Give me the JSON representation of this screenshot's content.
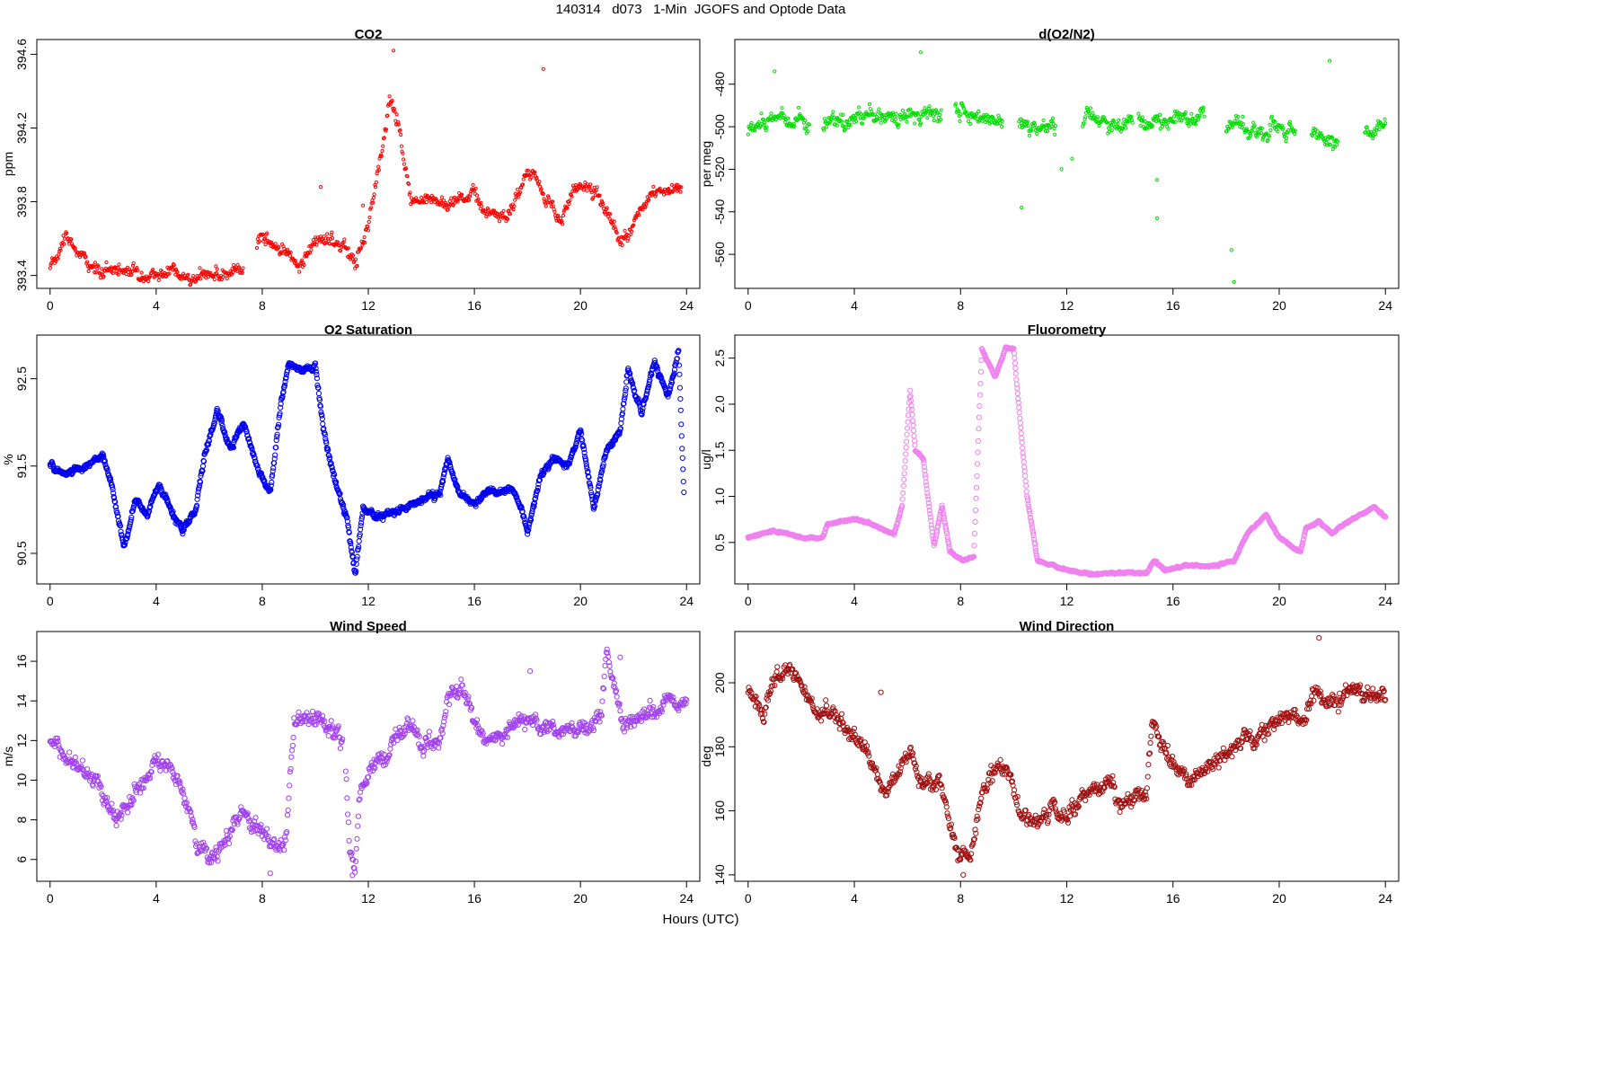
{
  "title": "140314   d073   1-Min  JGOFS and Optode Data",
  "x_common_label": "Hours (UTC)",
  "chart_data": [
    {
      "type": "scatter",
      "title": "CO2",
      "ylabel": "ppm",
      "color": "#ff0000",
      "xlim": [
        -0.5,
        24.5
      ],
      "ylim": [
        393.33,
        394.68
      ],
      "xticks": [
        0,
        4,
        8,
        12,
        16,
        20,
        24
      ],
      "xtick_labels": [
        "0",
        "4",
        "8",
        "12",
        "16",
        "20",
        "24"
      ],
      "yticks": [
        393.4,
        393.8,
        394.2,
        394.6
      ],
      "ytick_labels": [
        "393.4",
        "393.8",
        "394.2",
        "394.6"
      ],
      "gaps": [
        [
          7.3,
          7.8
        ]
      ],
      "trend": [
        [
          0,
          393.45
        ],
        [
          0.6,
          393.6
        ],
        [
          1.3,
          393.5
        ],
        [
          1.7,
          393.42
        ],
        [
          2.3,
          393.42
        ],
        [
          2.8,
          393.44
        ],
        [
          3.5,
          393.42
        ],
        [
          4.5,
          393.41
        ],
        [
          5.3,
          393.38
        ],
        [
          6,
          393.42
        ],
        [
          7.2,
          393.43
        ],
        [
          8,
          393.62
        ],
        [
          8.8,
          393.52
        ],
        [
          9.3,
          393.45
        ],
        [
          10,
          393.6
        ],
        [
          11,
          393.55
        ],
        [
          11.5,
          393.45
        ],
        [
          12,
          393.65
        ],
        [
          12.8,
          394.35
        ],
        [
          13.2,
          394.2
        ],
        [
          13.6,
          393.82
        ],
        [
          14.2,
          393.82
        ],
        [
          15,
          393.78
        ],
        [
          15.5,
          393.82
        ],
        [
          16,
          393.85
        ],
        [
          16.5,
          393.75
        ],
        [
          17.2,
          393.72
        ],
        [
          18,
          393.95
        ],
        [
          18.5,
          393.88
        ],
        [
          19.2,
          393.72
        ],
        [
          20,
          393.9
        ],
        [
          20.6,
          393.85
        ],
        [
          21.5,
          393.55
        ],
        [
          22,
          393.7
        ],
        [
          23,
          393.9
        ],
        [
          23.8,
          393.85
        ]
      ],
      "noise": 0.045,
      "outliers": [
        [
          12.95,
          394.62
        ],
        [
          18.6,
          394.52
        ],
        [
          10.2,
          393.88
        ],
        [
          11.8,
          393.78
        ]
      ]
    },
    {
      "type": "scatter",
      "title": "d(O2/N2)",
      "ylabel": "per meg",
      "color": "#00dd00",
      "xlim": [
        -0.5,
        24.5
      ],
      "ylim": [
        -576,
        -459
      ],
      "xticks": [
        0,
        4,
        8,
        12,
        16,
        20,
        24
      ],
      "xtick_labels": [
        "0",
        "4",
        "8",
        "12",
        "16",
        "20",
        "24"
      ],
      "yticks": [
        -560,
        -540,
        -520,
        -500,
        -480
      ],
      "ytick_labels": [
        "-560",
        "-540",
        "-520",
        "-500",
        "-480"
      ],
      "gaps": [
        [
          2.3,
          2.8
        ],
        [
          7.3,
          7.8
        ],
        [
          9.6,
          10.2
        ],
        [
          11.6,
          12.6
        ],
        [
          14.5,
          14.7
        ],
        [
          17.2,
          18.0
        ],
        [
          20.6,
          21.2
        ],
        [
          22.2,
          23.2
        ]
      ],
      "trend": [
        [
          0,
          -502
        ],
        [
          1,
          -497
        ],
        [
          2,
          -496
        ],
        [
          2.8,
          -499
        ],
        [
          4,
          -497
        ],
        [
          5,
          -496
        ],
        [
          6,
          -494
        ],
        [
          7,
          -495
        ],
        [
          8,
          -493
        ],
        [
          9,
          -496
        ],
        [
          10,
          -497
        ],
        [
          11,
          -498
        ],
        [
          12,
          -497
        ],
        [
          13,
          -495
        ],
        [
          14,
          -497
        ],
        [
          15,
          -498
        ],
        [
          16,
          -496
        ],
        [
          17,
          -492
        ],
        [
          18,
          -500
        ],
        [
          19,
          -502
        ],
        [
          20,
          -503
        ],
        [
          21,
          -503
        ],
        [
          22,
          -508
        ],
        [
          23.2,
          -503
        ],
        [
          24,
          -502
        ]
      ],
      "noise": 4.5,
      "outliers": [
        [
          1.0,
          -474
        ],
        [
          6.5,
          -465
        ],
        [
          10.3,
          -538
        ],
        [
          15.4,
          -525
        ],
        [
          15.4,
          -543
        ],
        [
          21.9,
          -469
        ],
        [
          18.2,
          -558
        ],
        [
          18.3,
          -573
        ],
        [
          11.8,
          -520
        ],
        [
          12.2,
          -515
        ]
      ]
    },
    {
      "type": "scatter",
      "title": "O2 Saturation",
      "ylabel": "%",
      "color": "#0000ee",
      "xlim": [
        -0.5,
        24.5
      ],
      "ylim": [
        90.15,
        93.0
      ],
      "xticks": [
        0,
        4,
        8,
        12,
        16,
        20,
        24
      ],
      "xtick_labels": [
        "0",
        "4",
        "8",
        "12",
        "16",
        "20",
        "24"
      ],
      "yticks": [
        90.5,
        91.5,
        92.5
      ],
      "ytick_labels": [
        "90.5",
        "91.5",
        "92.5"
      ],
      "gaps": [],
      "trend": [
        [
          0,
          91.5
        ],
        [
          0.5,
          91.4
        ],
        [
          1,
          91.45
        ],
        [
          1.6,
          91.55
        ],
        [
          2.0,
          91.6
        ],
        [
          2.3,
          91.3
        ],
        [
          2.8,
          90.55
        ],
        [
          3.2,
          91.1
        ],
        [
          3.7,
          90.95
        ],
        [
          4.1,
          91.3
        ],
        [
          4.6,
          90.95
        ],
        [
          5.0,
          90.75
        ],
        [
          5.5,
          91.0
        ],
        [
          5.8,
          91.6
        ],
        [
          6.3,
          92.1
        ],
        [
          6.8,
          91.7
        ],
        [
          7.3,
          92.0
        ],
        [
          7.8,
          91.5
        ],
        [
          8.3,
          91.2
        ],
        [
          8.7,
          92.2
        ],
        [
          9.0,
          92.7
        ],
        [
          9.5,
          92.6
        ],
        [
          10.0,
          92.65
        ],
        [
          10.3,
          91.9
        ],
        [
          10.7,
          91.4
        ],
        [
          11.2,
          90.9
        ],
        [
          11.5,
          90.25
        ],
        [
          11.8,
          91.0
        ],
        [
          12.3,
          90.9
        ],
        [
          13.0,
          90.95
        ],
        [
          14.0,
          91.1
        ],
        [
          14.7,
          91.2
        ],
        [
          15.0,
          91.6
        ],
        [
          15.4,
          91.2
        ],
        [
          16.0,
          91.05
        ],
        [
          16.5,
          91.2
        ],
        [
          17.5,
          91.2
        ],
        [
          18.0,
          90.75
        ],
        [
          18.5,
          91.4
        ],
        [
          19.0,
          91.6
        ],
        [
          19.5,
          91.5
        ],
        [
          20.0,
          91.9
        ],
        [
          20.5,
          91.0
        ],
        [
          21.0,
          91.7
        ],
        [
          21.5,
          91.9
        ],
        [
          21.8,
          92.6
        ],
        [
          22.3,
          92.1
        ],
        [
          22.8,
          92.7
        ],
        [
          23.3,
          92.3
        ],
        [
          23.7,
          92.8
        ],
        [
          23.9,
          91.2
        ]
      ],
      "noise": 0.045,
      "dense": true,
      "outliers": []
    },
    {
      "type": "scatter",
      "title": "Fluorometry",
      "ylabel": "ug/l",
      "color": "#ee82ee",
      "xlim": [
        -0.5,
        24.5
      ],
      "ylim": [
        0.05,
        2.75
      ],
      "xticks": [
        0,
        4,
        8,
        12,
        16,
        20,
        24
      ],
      "xtick_labels": [
        "0",
        "4",
        "8",
        "12",
        "16",
        "20",
        "24"
      ],
      "yticks": [
        0.5,
        1.0,
        1.5,
        2.0,
        2.5
      ],
      "ytick_labels": [
        "0.5",
        "1.0",
        "1.5",
        "2.0",
        "2.5"
      ],
      "gaps": [],
      "trend": [
        [
          0,
          0.55
        ],
        [
          1,
          0.63
        ],
        [
          2,
          0.55
        ],
        [
          2.8,
          0.55
        ],
        [
          3.0,
          0.7
        ],
        [
          4.0,
          0.75
        ],
        [
          4.5,
          0.72
        ],
        [
          5.0,
          0.65
        ],
        [
          5.5,
          0.58
        ],
        [
          5.8,
          0.9
        ],
        [
          6.1,
          2.15
        ],
        [
          6.3,
          1.5
        ],
        [
          6.6,
          1.4
        ],
        [
          7.0,
          0.45
        ],
        [
          7.3,
          0.9
        ],
        [
          7.6,
          0.4
        ],
        [
          8.1,
          0.3
        ],
        [
          8.5,
          0.35
        ],
        [
          8.8,
          2.6
        ],
        [
          9.3,
          2.3
        ],
        [
          9.7,
          2.6
        ],
        [
          10.0,
          2.6
        ],
        [
          10.5,
          1.0
        ],
        [
          10.9,
          0.3
        ],
        [
          12.0,
          0.2
        ],
        [
          13.0,
          0.15
        ],
        [
          14.0,
          0.17
        ],
        [
          15.0,
          0.17
        ],
        [
          15.3,
          0.3
        ],
        [
          15.7,
          0.2
        ],
        [
          16.5,
          0.25
        ],
        [
          17.5,
          0.24
        ],
        [
          18.3,
          0.3
        ],
        [
          18.8,
          0.6
        ],
        [
          19.5,
          0.8
        ],
        [
          20.0,
          0.55
        ],
        [
          20.8,
          0.4
        ],
        [
          21.0,
          0.65
        ],
        [
          21.5,
          0.72
        ],
        [
          22.0,
          0.6
        ],
        [
          23.0,
          0.8
        ],
        [
          23.6,
          0.88
        ],
        [
          24.0,
          0.78
        ]
      ],
      "noise": 0.012,
      "dense": true,
      "outliers": []
    },
    {
      "type": "scatter",
      "title": "Wind Speed",
      "ylabel": "m/s",
      "color": "#a040ee",
      "xlim": [
        -0.5,
        24.5
      ],
      "ylim": [
        4.9,
        17.5
      ],
      "xticks": [
        0,
        4,
        8,
        12,
        16,
        20,
        24
      ],
      "xtick_labels": [
        "0",
        "4",
        "8",
        "12",
        "16",
        "20",
        "24"
      ],
      "yticks": [
        6,
        8,
        10,
        12,
        14,
        16
      ],
      "ytick_labels": [
        "6",
        "8",
        "10",
        "12",
        "14",
        "16"
      ],
      "gaps": [
        [
          11.05,
          11.15
        ]
      ],
      "trend": [
        [
          0,
          11.9
        ],
        [
          0.6,
          11.0
        ],
        [
          1.2,
          10.8
        ],
        [
          1.8,
          10.3
        ],
        [
          2.5,
          8.0
        ],
        [
          3.3,
          9.5
        ],
        [
          4.0,
          11.2
        ],
        [
          4.6,
          10.2
        ],
        [
          5.2,
          8.5
        ],
        [
          5.6,
          6.5
        ],
        [
          6.2,
          6.2
        ],
        [
          6.6,
          7.0
        ],
        [
          7.2,
          8.4
        ],
        [
          7.7,
          7.5
        ],
        [
          8.3,
          6.8
        ],
        [
          8.9,
          7.0
        ],
        [
          9.2,
          12.8
        ],
        [
          10.0,
          13.0
        ],
        [
          10.6,
          12.5
        ],
        [
          11.1,
          12.0
        ],
        [
          11.3,
          6.5
        ],
        [
          11.5,
          5.5
        ],
        [
          11.7,
          9.8
        ],
        [
          12.3,
          10.8
        ],
        [
          13.0,
          12.0
        ],
        [
          13.6,
          13.0
        ],
        [
          14.0,
          11.8
        ],
        [
          14.6,
          11.6
        ],
        [
          15.0,
          14.0
        ],
        [
          15.5,
          14.8
        ],
        [
          16.0,
          13.0
        ],
        [
          16.5,
          12.0
        ],
        [
          17.2,
          12.5
        ],
        [
          17.8,
          13.5
        ],
        [
          18.5,
          12.8
        ],
        [
          19.5,
          12.5
        ],
        [
          20.3,
          12.5
        ],
        [
          20.8,
          13.5
        ],
        [
          21.0,
          16.5
        ],
        [
          21.6,
          12.5
        ],
        [
          22.0,
          13.0
        ],
        [
          22.8,
          13.5
        ],
        [
          23.5,
          14.2
        ],
        [
          24.0,
          14.0
        ]
      ],
      "noise": 0.5,
      "outliers": [
        [
          11.4,
          5.2
        ],
        [
          8.3,
          5.3
        ],
        [
          18.1,
          15.5
        ],
        [
          21.5,
          16.2
        ]
      ]
    },
    {
      "type": "scatter",
      "title": "Wind Direction",
      "ylabel": "deg",
      "color": "#a01010",
      "xlim": [
        -0.5,
        24.5
      ],
      "ylim": [
        138,
        216
      ],
      "xticks": [
        0,
        4,
        8,
        12,
        16,
        20,
        24
      ],
      "xtick_labels": [
        "0",
        "4",
        "8",
        "12",
        "16",
        "20",
        "24"
      ],
      "yticks": [
        140,
        160,
        180,
        200
      ],
      "ytick_labels": [
        "140",
        "160",
        "180",
        "200"
      ],
      "gaps": [],
      "trend": [
        [
          0,
          197
        ],
        [
          0.6,
          192
        ],
        [
          1.0,
          202
        ],
        [
          1.5,
          205
        ],
        [
          2.0,
          201
        ],
        [
          2.5,
          190
        ],
        [
          3.2,
          188
        ],
        [
          3.8,
          184
        ],
        [
          4.3,
          181
        ],
        [
          4.8,
          172
        ],
        [
          5.2,
          165
        ],
        [
          5.6,
          172
        ],
        [
          6.1,
          178
        ],
        [
          6.5,
          168
        ],
        [
          7.2,
          170
        ],
        [
          7.6,
          155
        ],
        [
          8.0,
          146
        ],
        [
          8.5,
          150
        ],
        [
          8.8,
          165
        ],
        [
          9.3,
          172
        ],
        [
          9.7,
          175
        ],
        [
          10.1,
          162
        ],
        [
          10.5,
          155
        ],
        [
          11.0,
          156
        ],
        [
          11.5,
          160
        ],
        [
          12.0,
          157
        ],
        [
          12.5,
          163
        ],
        [
          13.0,
          167
        ],
        [
          13.6,
          168
        ],
        [
          14.0,
          163
        ],
        [
          15.0,
          163
        ],
        [
          15.2,
          188
        ],
        [
          15.6,
          181
        ],
        [
          16.0,
          174
        ],
        [
          16.5,
          170
        ],
        [
          17.0,
          172
        ],
        [
          17.6,
          175
        ],
        [
          18.0,
          178
        ],
        [
          18.6,
          182
        ],
        [
          19.0,
          183
        ],
        [
          19.5,
          188
        ],
        [
          20.0,
          190
        ],
        [
          20.5,
          191
        ],
        [
          21.0,
          190
        ],
        [
          21.4,
          200
        ],
        [
          21.8,
          194
        ],
        [
          22.3,
          196
        ],
        [
          23.0,
          198
        ],
        [
          24.0,
          195
        ]
      ],
      "noise": 3.2,
      "outliers": [
        [
          21.5,
          214
        ],
        [
          8.1,
          140
        ],
        [
          5.0,
          197
        ]
      ]
    }
  ]
}
